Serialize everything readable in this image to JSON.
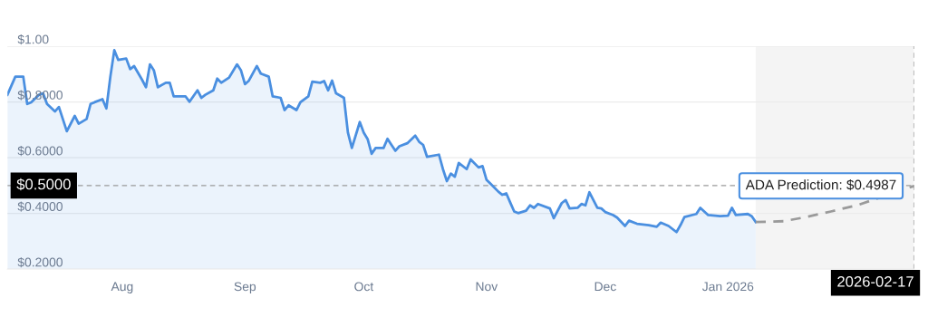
{
  "chart_data": {
    "type": "area",
    "x": [
      "2025-07-03",
      "2025-07-05",
      "2025-07-07",
      "2025-07-08",
      "2025-07-09",
      "2025-07-11",
      "2025-07-12",
      "2025-07-13",
      "2025-07-15",
      "2025-07-16",
      "2025-07-18",
      "2025-07-20",
      "2025-07-21",
      "2025-07-23",
      "2025-07-24",
      "2025-07-25",
      "2025-07-27",
      "2025-07-28",
      "2025-07-29",
      "2025-07-30",
      "2025-07-31",
      "2025-08-02",
      "2025-08-03",
      "2025-08-04",
      "2025-08-06",
      "2025-08-07",
      "2025-08-08",
      "2025-08-09",
      "2025-08-10",
      "2025-08-12",
      "2025-08-13",
      "2025-08-14",
      "2025-08-17",
      "2025-08-18",
      "2025-08-20",
      "2025-08-21",
      "2025-08-22",
      "2025-08-24",
      "2025-08-25",
      "2025-08-26",
      "2025-08-28",
      "2025-08-30",
      "2025-08-31",
      "2025-09-01",
      "2025-09-02",
      "2025-09-04",
      "2025-09-05",
      "2025-09-07",
      "2025-09-08",
      "2025-09-10",
      "2025-09-11",
      "2025-09-12",
      "2025-09-14",
      "2025-09-15",
      "2025-09-17",
      "2025-09-18",
      "2025-09-20",
      "2025-09-21",
      "2025-09-22",
      "2025-09-23",
      "2025-09-24",
      "2025-09-26",
      "2025-09-27",
      "2025-09-28",
      "2025-09-30",
      "2025-10-01",
      "2025-10-02",
      "2025-10-03",
      "2025-10-04",
      "2025-10-06",
      "2025-10-07",
      "2025-10-08",
      "2025-10-09",
      "2025-10-10",
      "2025-10-12",
      "2025-10-14",
      "2025-10-15",
      "2025-10-16",
      "2025-10-17",
      "2025-10-20",
      "2025-10-21",
      "2025-10-22",
      "2025-10-23",
      "2025-10-24",
      "2025-10-25",
      "2025-10-27",
      "2025-10-28",
      "2025-10-30",
      "2025-10-31",
      "2025-11-01",
      "2025-11-02",
      "2025-11-04",
      "2025-11-05",
      "2025-11-06",
      "2025-11-07",
      "2025-11-08",
      "2025-11-09",
      "2025-11-11",
      "2025-11-12",
      "2025-11-13",
      "2025-11-14",
      "2025-11-17",
      "2025-11-18",
      "2025-11-20",
      "2025-11-21",
      "2025-11-22",
      "2025-11-24",
      "2025-11-25",
      "2025-11-26",
      "2025-11-27",
      "2025-11-29",
      "2025-11-30",
      "2025-12-01",
      "2025-12-03",
      "2025-12-04",
      "2025-12-06",
      "2025-12-07",
      "2025-12-09",
      "2025-12-12",
      "2025-12-14",
      "2025-12-15",
      "2025-12-17",
      "2025-12-19",
      "2025-12-20",
      "2025-12-21",
      "2025-12-24",
      "2025-12-25",
      "2025-12-27",
      "2025-12-30",
      "2026-01-01",
      "2026-01-02",
      "2026-01-03",
      "2026-01-06",
      "2026-01-07",
      "2026-01-08"
    ],
    "series": [
      {
        "color": "#4a8fe0",
        "values": [
          0.826,
          0.891,
          0.891,
          0.793,
          0.799,
          0.826,
          0.831,
          0.793,
          0.766,
          0.782,
          0.695,
          0.75,
          0.722,
          0.739,
          0.793,
          0.799,
          0.81,
          0.777,
          0.891,
          0.986,
          0.951,
          0.956,
          0.918,
          0.929,
          0.88,
          0.853,
          0.935,
          0.913,
          0.853,
          0.869,
          0.869,
          0.82,
          0.82,
          0.801,
          0.842,
          0.815,
          0.826,
          0.842,
          0.884,
          0.869,
          0.888,
          0.935,
          0.913,
          0.864,
          0.877,
          0.929,
          0.902,
          0.891,
          0.82,
          0.815,
          0.771,
          0.788,
          0.771,
          0.799,
          0.82,
          0.873,
          0.869,
          0.875,
          0.842,
          0.877,
          0.831,
          0.815,
          0.69,
          0.635,
          0.728,
          0.69,
          0.666,
          0.614,
          0.635,
          0.635,
          0.668,
          0.646,
          0.625,
          0.641,
          0.652,
          0.679,
          0.657,
          0.646,
          0.603,
          0.611,
          0.559,
          0.516,
          0.543,
          0.532,
          0.581,
          0.559,
          0.594,
          0.565,
          0.57,
          0.521,
          0.507,
          0.478,
          0.467,
          0.472,
          0.439,
          0.407,
          0.401,
          0.41,
          0.429,
          0.42,
          0.434,
          0.418,
          0.383,
          0.437,
          0.448,
          0.418,
          0.42,
          0.434,
          0.429,
          0.476,
          0.42,
          0.418,
          0.405,
          0.394,
          0.385,
          0.355,
          0.374,
          0.363,
          0.358,
          0.352,
          0.367,
          0.355,
          0.333,
          0.358,
          0.387,
          0.398,
          0.42,
          0.394,
          0.39,
          0.392,
          0.42,
          0.394,
          0.398,
          0.39,
          0.369
        ]
      },
      {
        "type": "line",
        "color": "#9a9a9a",
        "line_style": "dashed",
        "x": [
          "2026-01-08",
          "2026-01-15",
          "2026-01-20",
          "2026-01-27",
          "2026-02-03",
          "2026-02-17"
        ],
        "values": [
          0.369,
          0.372,
          0.385,
          0.407,
          0.431,
          0.4987
        ]
      }
    ],
    "xlim": [
      "2025-07-03",
      "2026-02-17"
    ],
    "xticks": [
      {
        "value": "2025-08-01",
        "label": "Aug"
      },
      {
        "value": "2025-09-01",
        "label": "Sep"
      },
      {
        "value": "2025-10-01",
        "label": "Oct"
      },
      {
        "value": "2025-11-01",
        "label": "Nov"
      },
      {
        "value": "2025-12-01",
        "label": "Dec"
      },
      {
        "value": "2026-01-01",
        "label": "Jan 2026"
      }
    ],
    "ylim": [
      0.2,
      1.0
    ],
    "yticks": [
      {
        "value": 0.2,
        "label": "$0.2000"
      },
      {
        "value": 0.4,
        "label": "$0.4000"
      },
      {
        "value": 0.6,
        "label": "$0.6000"
      },
      {
        "value": 0.8,
        "label": "$0.8000"
      },
      {
        "value": 1.0,
        "label": "$1.00"
      }
    ],
    "grid": "y",
    "legend": false,
    "bands": [
      {
        "axis": "x",
        "from": "2026-01-08",
        "to": "2026-02-17",
        "color": "#f4f4f4"
      }
    ],
    "ref_lines": [
      {
        "axis": "y",
        "value": 0.5,
        "label": "$0.5000",
        "color": "#9a9a9a",
        "line_style": "dashed"
      },
      {
        "axis": "x",
        "value": "2026-02-17",
        "label": "2026-02-17",
        "color": "#9a9a9a",
        "line_style": "dashed"
      }
    ],
    "annotations": [
      {
        "text": "ADA Prediction: $0.4987",
        "x": "2026-02-17",
        "y": 0.4987
      }
    ]
  }
}
